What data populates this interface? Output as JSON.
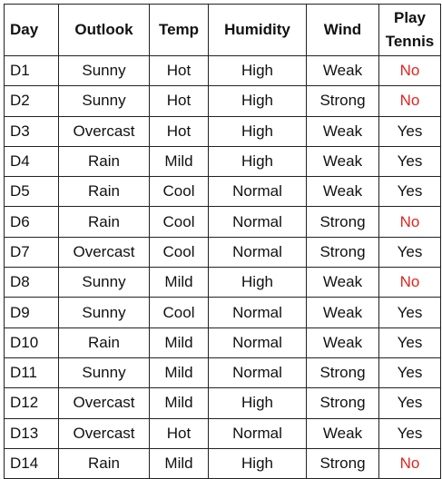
{
  "table": {
    "headers": {
      "day": "Day",
      "outlook": "Outlook",
      "temp": "Temp",
      "humidity": "Humidity",
      "wind": "Wind",
      "play_line1": "Play",
      "play_line2": "Tennis"
    },
    "no_color": "#e0241f",
    "rows": [
      {
        "day": "D1",
        "outlook": "Sunny",
        "temp": "Hot",
        "humidity": "High",
        "wind": "Weak",
        "play": "No"
      },
      {
        "day": "D2",
        "outlook": "Sunny",
        "temp": "Hot",
        "humidity": "High",
        "wind": "Strong",
        "play": "No"
      },
      {
        "day": "D3",
        "outlook": "Overcast",
        "temp": "Hot",
        "humidity": "High",
        "wind": "Weak",
        "play": "Yes"
      },
      {
        "day": "D4",
        "outlook": "Rain",
        "temp": "Mild",
        "humidity": "High",
        "wind": "Weak",
        "play": "Yes"
      },
      {
        "day": "D5",
        "outlook": "Rain",
        "temp": "Cool",
        "humidity": "Normal",
        "wind": "Weak",
        "play": "Yes"
      },
      {
        "day": "D6",
        "outlook": "Rain",
        "temp": "Cool",
        "humidity": "Normal",
        "wind": "Strong",
        "play": "No"
      },
      {
        "day": "D7",
        "outlook": "Overcast",
        "temp": "Cool",
        "humidity": "Normal",
        "wind": "Strong",
        "play": "Yes"
      },
      {
        "day": "D8",
        "outlook": "Sunny",
        "temp": "Mild",
        "humidity": "High",
        "wind": "Weak",
        "play": "No"
      },
      {
        "day": "D9",
        "outlook": "Sunny",
        "temp": "Cool",
        "humidity": "Normal",
        "wind": "Weak",
        "play": "Yes"
      },
      {
        "day": "D10",
        "outlook": "Rain",
        "temp": "Mild",
        "humidity": "Normal",
        "wind": "Weak",
        "play": "Yes"
      },
      {
        "day": "D11",
        "outlook": "Sunny",
        "temp": "Mild",
        "humidity": "Normal",
        "wind": "Strong",
        "play": "Yes"
      },
      {
        "day": "D12",
        "outlook": "Overcast",
        "temp": "Mild",
        "humidity": "High",
        "wind": "Strong",
        "play": "Yes"
      },
      {
        "day": "D13",
        "outlook": "Overcast",
        "temp": "Hot",
        "humidity": "Normal",
        "wind": "Weak",
        "play": "Yes"
      },
      {
        "day": "D14",
        "outlook": "Rain",
        "temp": "Mild",
        "humidity": "High",
        "wind": "Strong",
        "play": "No"
      }
    ]
  }
}
